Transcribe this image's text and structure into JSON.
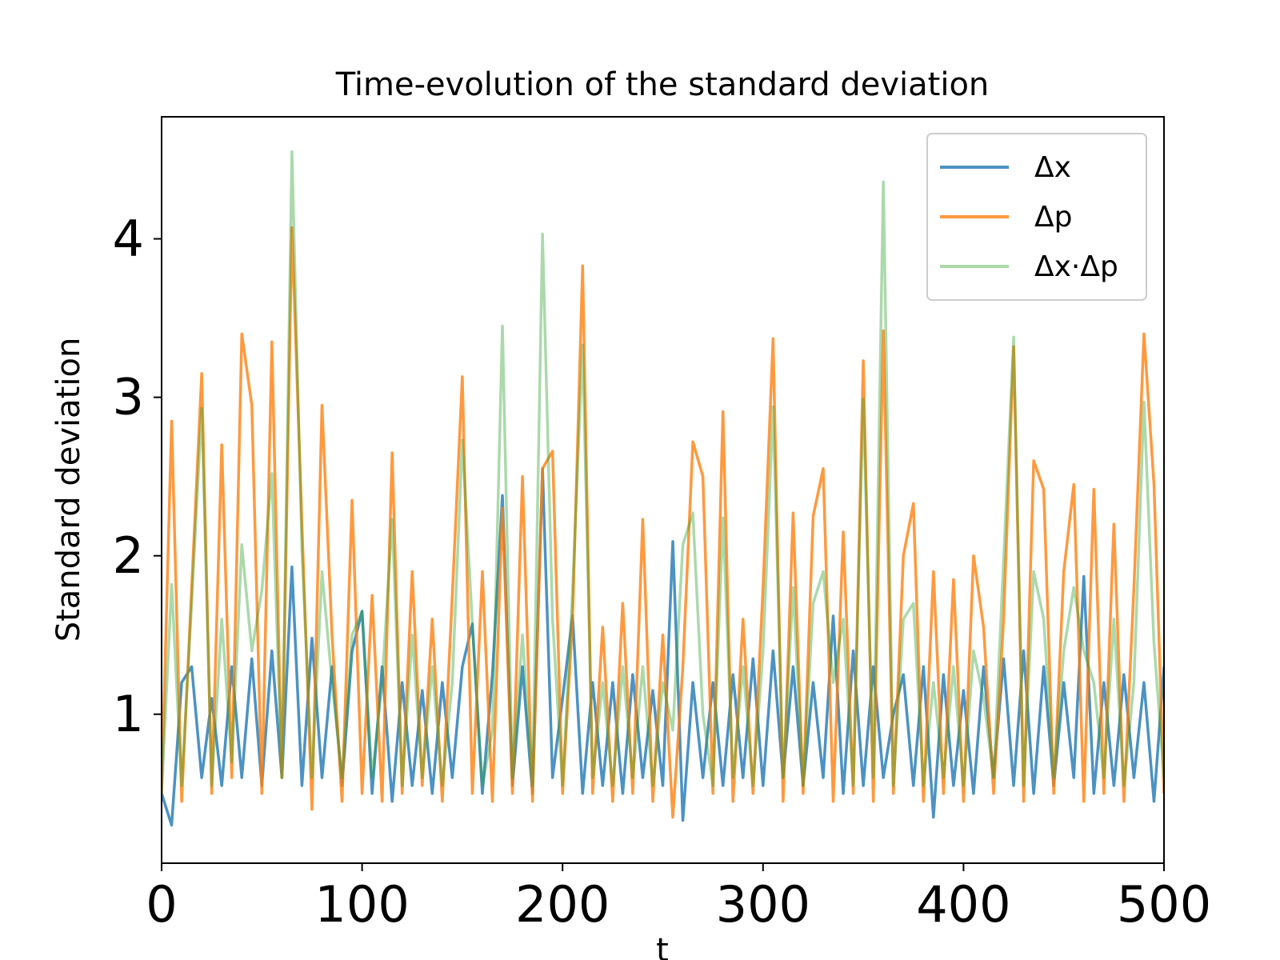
{
  "chart_data": {
    "type": "line",
    "title": "Time-evolution of the standard deviation",
    "xlabel": "t",
    "ylabel": "Standard deviation",
    "x": [
      0,
      5,
      10,
      15,
      20,
      25,
      30,
      35,
      40,
      45,
      50,
      55,
      60,
      65,
      70,
      75,
      80,
      85,
      90,
      95,
      100,
      105,
      110,
      115,
      120,
      125,
      130,
      135,
      140,
      145,
      150,
      155,
      160,
      165,
      170,
      175,
      180,
      185,
      190,
      195,
      200,
      205,
      210,
      215,
      220,
      225,
      230,
      235,
      240,
      245,
      250,
      255,
      260,
      265,
      270,
      275,
      280,
      285,
      290,
      295,
      300,
      305,
      310,
      315,
      320,
      325,
      330,
      335,
      340,
      345,
      350,
      355,
      360,
      365,
      370,
      375,
      380,
      385,
      390,
      395,
      400,
      405,
      410,
      415,
      420,
      425,
      430,
      435,
      440,
      445,
      450,
      455,
      460,
      465,
      470,
      475,
      480,
      485,
      490,
      495,
      500
    ],
    "series": [
      {
        "name": "Δx",
        "color": "#1f77b4",
        "alpha": 0.8,
        "values": [
          0.5,
          0.3,
          1.2,
          1.3,
          0.6,
          1.1,
          0.55,
          1.3,
          0.6,
          1.35,
          0.55,
          1.4,
          0.6,
          1.93,
          0.55,
          1.48,
          0.6,
          1.3,
          0.55,
          1.4,
          1.65,
          0.5,
          1.3,
          0.45,
          1.2,
          0.55,
          1.15,
          0.5,
          1.2,
          0.6,
          1.3,
          1.57,
          0.5,
          1.25,
          2.38,
          0.55,
          1.3,
          0.5,
          2.55,
          0.6,
          1.1,
          1.62,
          0.5,
          1.2,
          0.55,
          1.2,
          0.5,
          1.25,
          0.6,
          1.15,
          0.55,
          2.09,
          0.33,
          1.2,
          0.6,
          1.2,
          0.55,
          1.25,
          0.6,
          1.35,
          0.55,
          1.4,
          0.6,
          1.3,
          0.55,
          1.2,
          0.6,
          1.62,
          0.5,
          1.4,
          0.55,
          1.3,
          0.6,
          1.0,
          1.25,
          0.55,
          1.3,
          0.35,
          1.25,
          0.55,
          1.15,
          0.5,
          1.3,
          0.6,
          1.35,
          0.55,
          1.4,
          0.5,
          1.3,
          0.55,
          1.2,
          0.6,
          1.87,
          0.5,
          1.2,
          0.55,
          1.25,
          0.6,
          1.2,
          0.45,
          1.3
        ]
      },
      {
        "name": "Δp",
        "color": "#ff7f0e",
        "alpha": 0.8,
        "values": [
          0.5,
          2.85,
          0.45,
          1.8,
          3.15,
          0.5,
          2.7,
          0.6,
          3.4,
          2.95,
          0.5,
          3.35,
          0.6,
          4.07,
          2.2,
          0.4,
          2.95,
          1.5,
          0.45,
          2.35,
          0.5,
          1.75,
          0.45,
          2.65,
          0.5,
          1.9,
          0.55,
          1.6,
          0.45,
          1.75,
          3.13,
          0.5,
          1.9,
          0.45,
          2.3,
          0.5,
          2.5,
          0.45,
          2.55,
          2.66,
          0.5,
          1.6,
          3.83,
          0.5,
          1.55,
          0.45,
          1.7,
          0.5,
          2.23,
          0.45,
          1.5,
          0.35,
          1.3,
          2.72,
          2.5,
          0.5,
          2.91,
          0.45,
          1.6,
          0.5,
          1.8,
          3.37,
          0.45,
          2.27,
          0.5,
          2.25,
          2.55,
          0.45,
          2.15,
          0.5,
          3.23,
          0.45,
          3.42,
          0.5,
          2.0,
          2.33,
          0.45,
          1.9,
          0.5,
          1.85,
          0.45,
          2.0,
          1.55,
          0.5,
          1.6,
          3.32,
          0.45,
          2.6,
          2.42,
          0.5,
          1.9,
          2.45,
          0.45,
          2.42,
          0.5,
          2.2,
          0.45,
          1.8,
          3.4,
          2.45,
          0.5
        ]
      },
      {
        "name": "Δx·Δp",
        "color": "#2ca02c",
        "alpha": 0.4,
        "values": [
          0.5,
          1.82,
          0.55,
          1.7,
          2.93,
          0.55,
          1.6,
          0.7,
          2.07,
          1.4,
          1.78,
          2.52,
          0.6,
          4.55,
          2.03,
          0.6,
          1.9,
          1.2,
          0.6,
          1.5,
          1.65,
          0.6,
          1.2,
          2.23,
          0.55,
          1.5,
          0.6,
          1.3,
          0.55,
          1.2,
          2.73,
          1.57,
          0.55,
          0.9,
          3.45,
          0.6,
          1.5,
          0.55,
          4.03,
          1.6,
          0.55,
          1.78,
          3.33,
          0.6,
          1.2,
          0.55,
          1.3,
          0.6,
          1.3,
          0.55,
          1.2,
          0.9,
          2.07,
          2.27,
          1.0,
          0.55,
          2.24,
          0.6,
          1.3,
          0.55,
          1.4,
          2.94,
          0.6,
          1.8,
          0.55,
          1.7,
          1.9,
          1.2,
          1.6,
          0.55,
          2.99,
          0.6,
          4.36,
          0.55,
          1.6,
          1.7,
          0.55,
          1.2,
          0.6,
          1.3,
          0.55,
          1.4,
          1.1,
          0.6,
          1.97,
          3.38,
          0.55,
          1.9,
          1.6,
          0.6,
          1.4,
          1.8,
          1.4,
          1.2,
          0.6,
          1.6,
          0.55,
          1.2,
          2.97,
          1.45,
          0.6
        ]
      }
    ],
    "xlim": [
      0,
      500
    ],
    "xticks": [
      0,
      100,
      200,
      300,
      400,
      500
    ],
    "ylim": [
      0.06,
      4.77
    ],
    "yticks": [
      1,
      2,
      3,
      4
    ],
    "grid": false,
    "legend": "upper right"
  }
}
